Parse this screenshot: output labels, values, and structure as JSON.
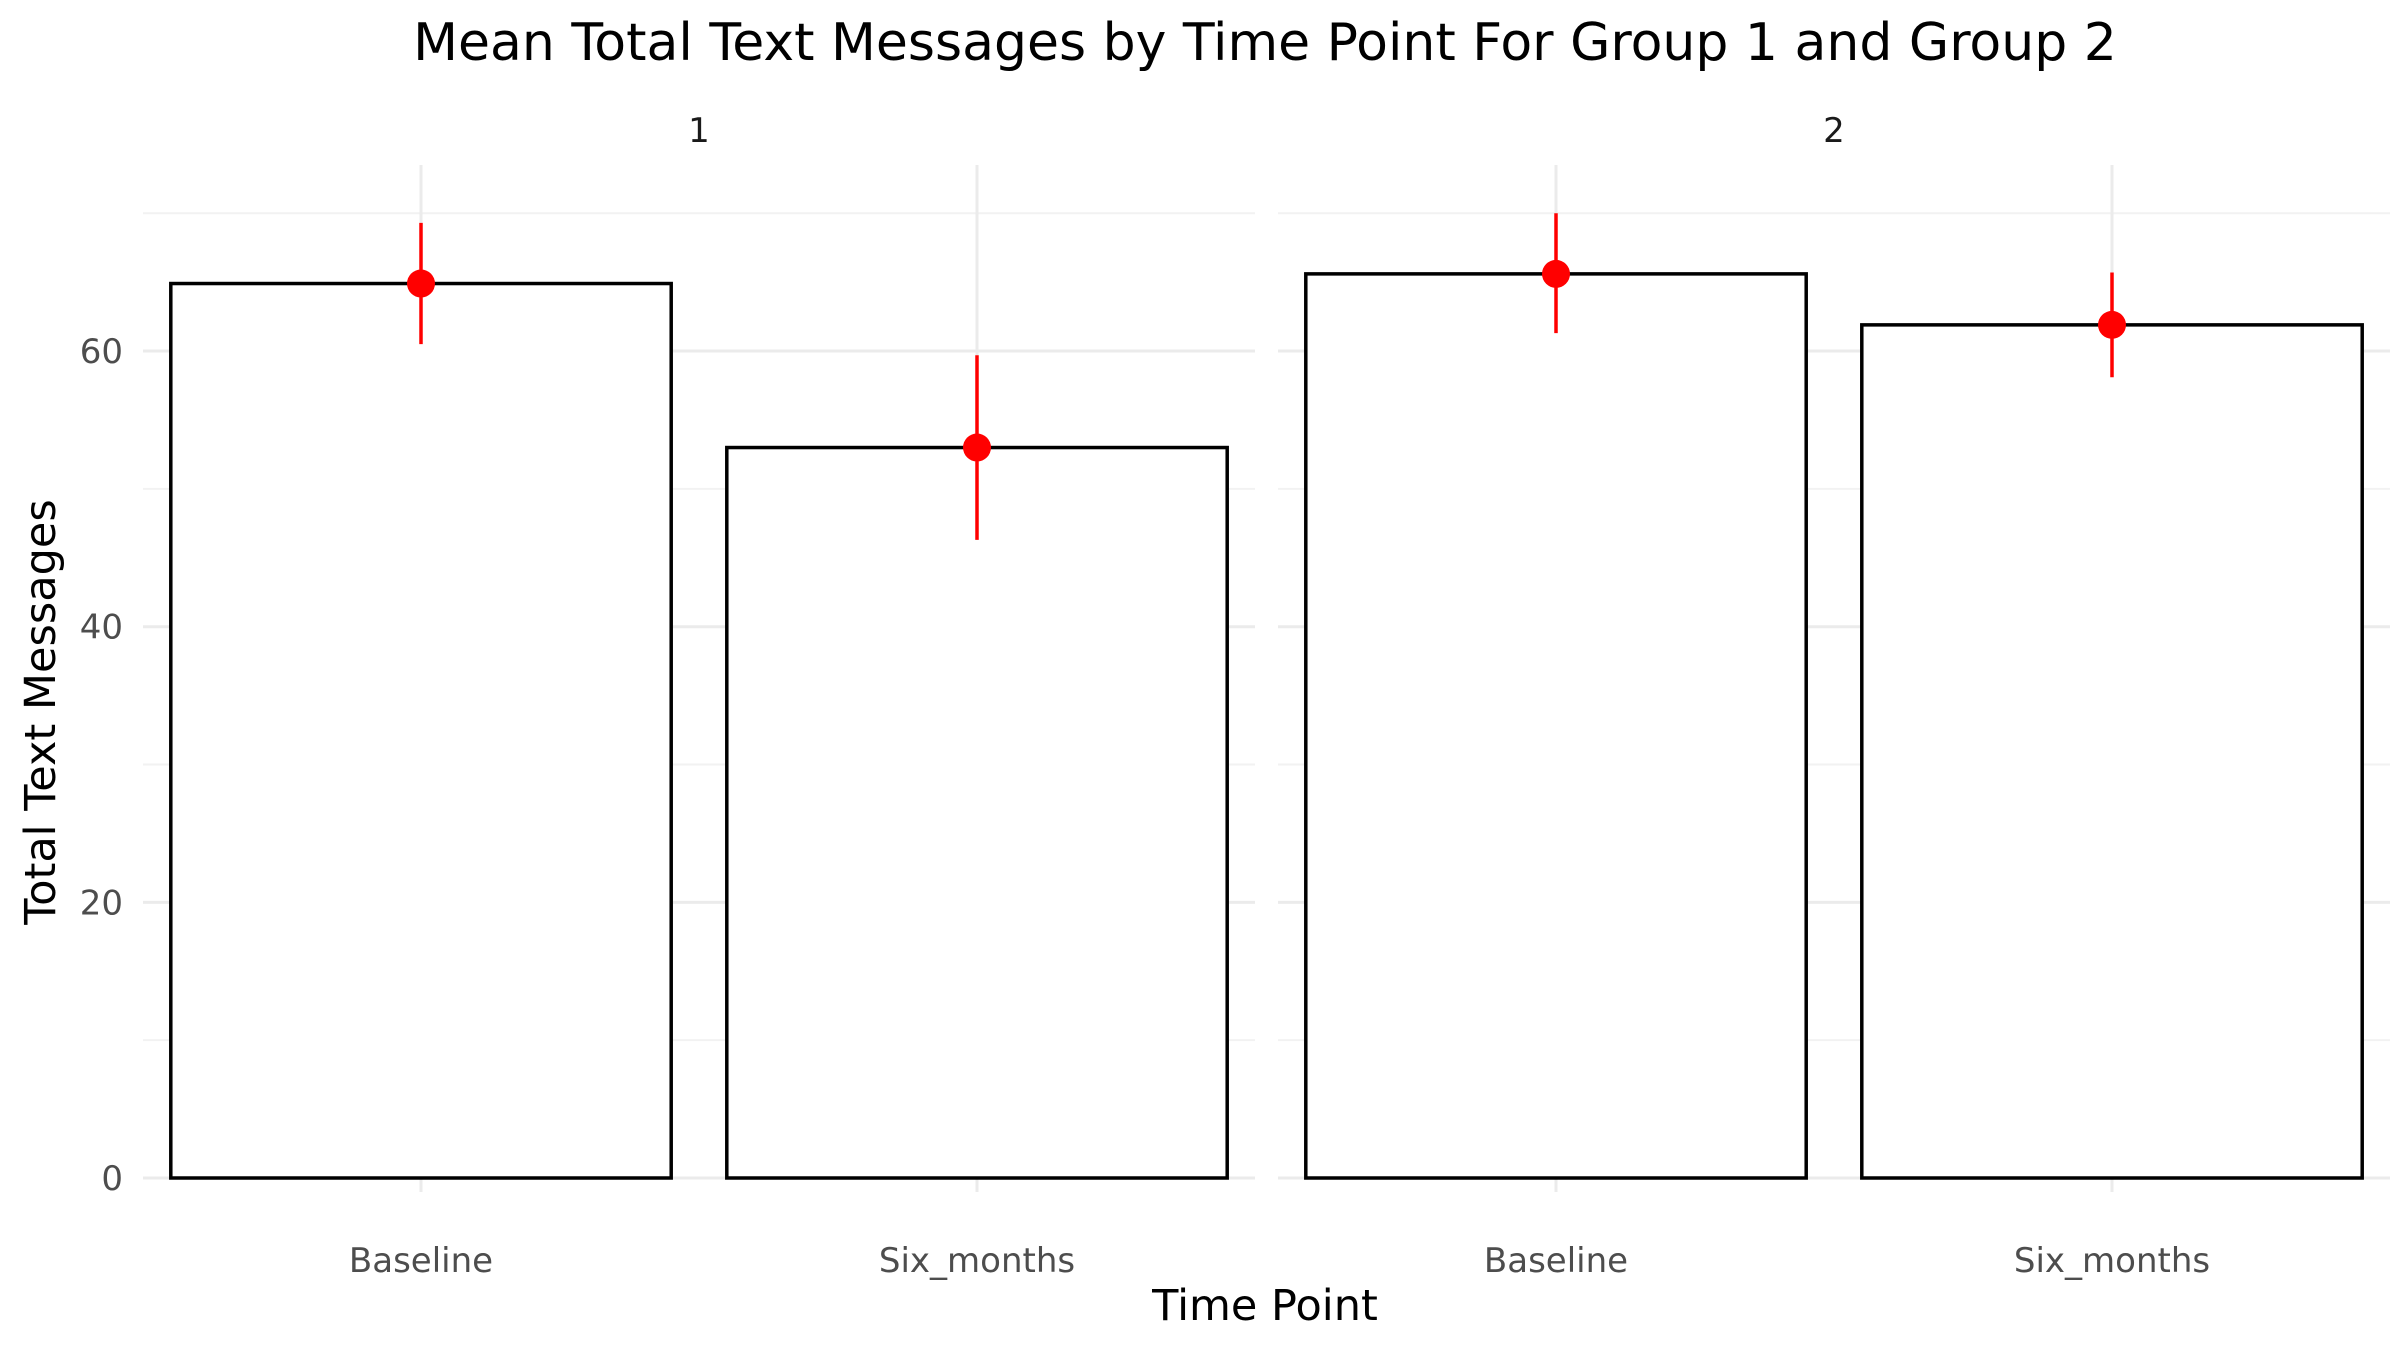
{
  "chart_data": {
    "type": "bar",
    "title": "Mean Total Text Messages by Time Point For Group 1 and Group 2",
    "xlabel": "Time Point",
    "ylabel": "Total Text Messages",
    "ylim": [
      0,
      73.5
    ],
    "yticks": [
      0,
      20,
      40,
      60
    ],
    "grid": true,
    "categories": [
      "Baseline",
      "Six_months"
    ],
    "bar_fill": "#ffffff",
    "bar_outline": "#000000",
    "point_color": "#ff0000",
    "panels": [
      {
        "label": "1",
        "values": [
          64.9,
          53.0
        ],
        "error_low": [
          60.5,
          46.3
        ],
        "error_high": [
          69.3,
          59.7
        ]
      },
      {
        "label": "2",
        "values": [
          65.6,
          61.9
        ],
        "error_low": [
          61.3,
          58.1
        ],
        "error_high": [
          70.0,
          65.7
        ]
      }
    ]
  }
}
